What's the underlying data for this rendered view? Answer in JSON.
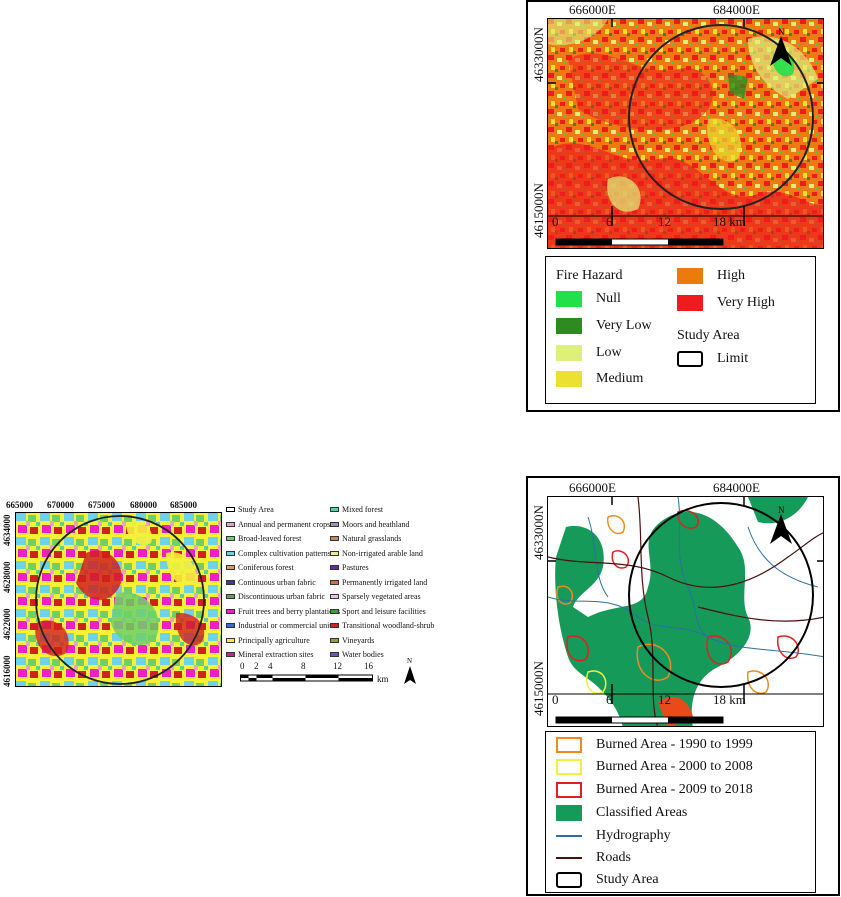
{
  "fire_map": {
    "coords": {
      "easting": [
        "666000E",
        "684000E"
      ],
      "northing": [
        "4633000N",
        "4615000N"
      ]
    },
    "scale": {
      "labels": [
        "0",
        "6",
        "12",
        "18 km"
      ]
    },
    "legend": {
      "title": "Fire Hazard",
      "items": [
        {
          "label": "Null",
          "color": "#22e04a"
        },
        {
          "label": "Very Low",
          "color": "#2e8b1f"
        },
        {
          "label": "Low",
          "color": "#dff07a"
        },
        {
          "label": "Medium",
          "color": "#ece130"
        },
        {
          "label": "High",
          "color": "#ed7a0d"
        },
        {
          "label": "Very High",
          "color": "#ee1c1c"
        }
      ],
      "study_area_title": "Study Area",
      "study_area_item": "Limit"
    }
  },
  "landcover_map": {
    "x_ticks": [
      "665000",
      "670000",
      "675000",
      "680000",
      "685000"
    ],
    "y_ticks": [
      "4634000",
      "4628000",
      "4622000",
      "4616000"
    ],
    "scale": {
      "labels": [
        "0",
        "2",
        "4",
        "8",
        "12",
        "16"
      ],
      "unit": "km"
    },
    "north": "N",
    "legend_left": [
      {
        "label": "Study Area",
        "color": "#ffffff"
      },
      {
        "label": "Annual and permanent crops",
        "color": "#e8a2c5"
      },
      {
        "label": "Broad-leaved forest",
        "color": "#6fd06a"
      },
      {
        "label": "Complex cultivation patterns",
        "color": "#6fd0e8"
      },
      {
        "label": "Coniferous forest",
        "color": "#d99a6a"
      },
      {
        "label": "Continuous urban fabric",
        "color": "#3a3a9a"
      },
      {
        "label": "Discontinuous urban fabric",
        "color": "#6a9a6a"
      },
      {
        "label": "Fruit trees and berry plantations",
        "color": "#f020c0"
      },
      {
        "label": "Industrial or commercial units",
        "color": "#3a6ad0"
      },
      {
        "label": "Principally agriculture",
        "color": "#f5f03a"
      },
      {
        "label": "Mineral extraction sites",
        "color": "#c02a8a"
      }
    ],
    "legend_right": [
      {
        "label": "Mixed forest",
        "color": "#5ad0a0"
      },
      {
        "label": "Moors and heathland",
        "color": "#a08ad0"
      },
      {
        "label": "Natural grasslands",
        "color": "#c08a6a"
      },
      {
        "label": "Non-irrigated arable land",
        "color": "#f0e8a0"
      },
      {
        "label": "Pastures",
        "color": "#6a2a9a"
      },
      {
        "label": "Permanently irrigated land",
        "color": "#e06a3a"
      },
      {
        "label": "Sparsely vegetated areas",
        "color": "#f0c0f0"
      },
      {
        "label": "Sport and leisure facilities",
        "color": "#3aa03a"
      },
      {
        "label": "Transitional woodland-shrub",
        "color": "#d02020"
      },
      {
        "label": "Vineyards",
        "color": "#9a9a4a"
      },
      {
        "label": "Water bodies",
        "color": "#6a5ac0"
      }
    ]
  },
  "burned_map": {
    "coords": {
      "easting": [
        "666000E",
        "684000E"
      ],
      "northing": [
        "4633000N",
        "4615000N"
      ]
    },
    "scale": {
      "labels": [
        "0",
        "6",
        "12",
        "18 km"
      ]
    },
    "legend": {
      "items": [
        {
          "label": "Burned Area - 1990 to 1999",
          "kind": "outline",
          "color": "#f08a20"
        },
        {
          "label": "Burned Area - 2000 to 2008",
          "kind": "outline",
          "color": "#f5ef40"
        },
        {
          "label": "Burned Area - 2009 to 2018",
          "kind": "outline",
          "color": "#e02020"
        },
        {
          "label": "Classified Areas",
          "kind": "fill",
          "color": "#169a5a"
        },
        {
          "label": "Hydrography",
          "kind": "line",
          "color": "#2f6fa0"
        },
        {
          "label": "Roads",
          "kind": "line",
          "color": "#4a0f0f"
        },
        {
          "label": "Study Area",
          "kind": "outline",
          "color": "#000000"
        }
      ]
    }
  }
}
